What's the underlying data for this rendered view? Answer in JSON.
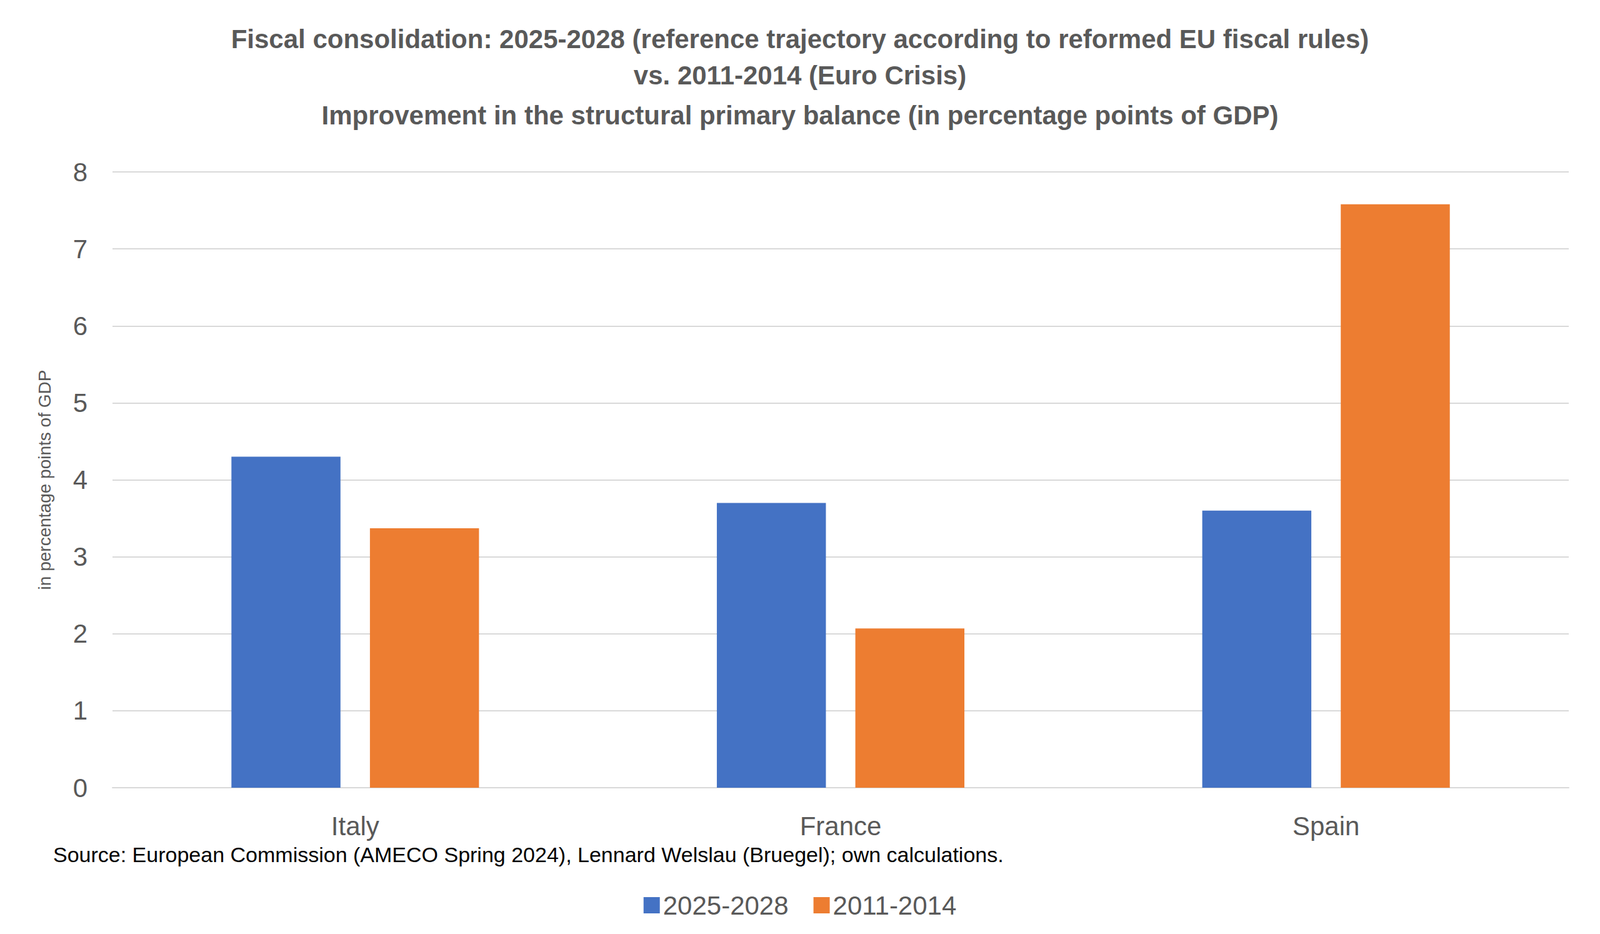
{
  "chart_data": {
    "type": "bar",
    "title": "Fiscal consolidation: 2025-2028 (reference trajectory according to reformed EU fiscal rules)\nvs. 2011-2014 (Euro Crisis)",
    "subtitle": "Improvement in the structural primary balance (in percentage points of GDP)",
    "y_label": "in percentage points of GDP",
    "annotations": [
      "Source: European Commission (AMECO Spring 2024), Lennard Welslau (Bruegel); own calculations."
    ],
    "categories": [
      "Italy",
      "France",
      "Spain"
    ],
    "series": [
      {
        "name": "2025-2028",
        "color": "#4472c4",
        "values": [
          4.3,
          3.7,
          3.6
        ]
      },
      {
        "name": "2011-2014",
        "color": "#ed7d31",
        "values": [
          3.37,
          2.07,
          7.58
        ]
      }
    ],
    "ylim": [
      0,
      8
    ],
    "yticks": [
      0,
      1,
      2,
      3,
      4,
      5,
      6,
      7,
      8
    ],
    "grid": true,
    "legend": "bottom"
  }
}
